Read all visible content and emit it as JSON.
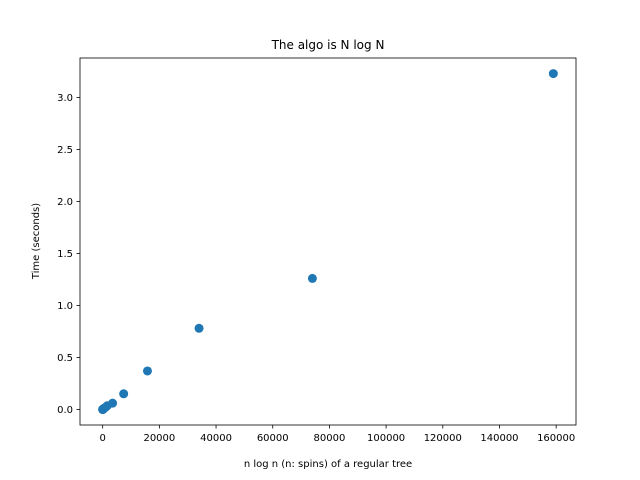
{
  "chart_data": {
    "type": "scatter",
    "title": "The algo is N log N",
    "xlabel": "n log n (n: spins) of a regular tree",
    "ylabel": "Time (seconds)",
    "xlim": [
      -8000,
      167000
    ],
    "ylim": [
      -0.15,
      3.38
    ],
    "xticks": [
      0,
      20000,
      40000,
      60000,
      80000,
      100000,
      120000,
      140000,
      160000
    ],
    "xtick_labels": [
      "0",
      "20000",
      "40000",
      "60000",
      "80000",
      "100000",
      "120000",
      "140000",
      "160000"
    ],
    "yticks": [
      0.0,
      0.5,
      1.0,
      1.5,
      2.0,
      2.5,
      3.0
    ],
    "ytick_labels": [
      "0.0",
      "0.5",
      "1.0",
      "1.5",
      "2.0",
      "2.5",
      "3.0"
    ],
    "grid": false,
    "legend": "none",
    "marker_color": "#1f77b4",
    "x": [
      0,
      10,
      30,
      80,
      200,
      450,
      1000,
      1600,
      3500,
      7400,
      15800,
      34000,
      74000,
      159000
    ],
    "y": [
      0.0,
      0.0,
      0.0,
      0.0,
      0.005,
      0.01,
      0.02,
      0.035,
      0.06,
      0.15,
      0.37,
      0.78,
      1.26,
      3.23
    ]
  }
}
